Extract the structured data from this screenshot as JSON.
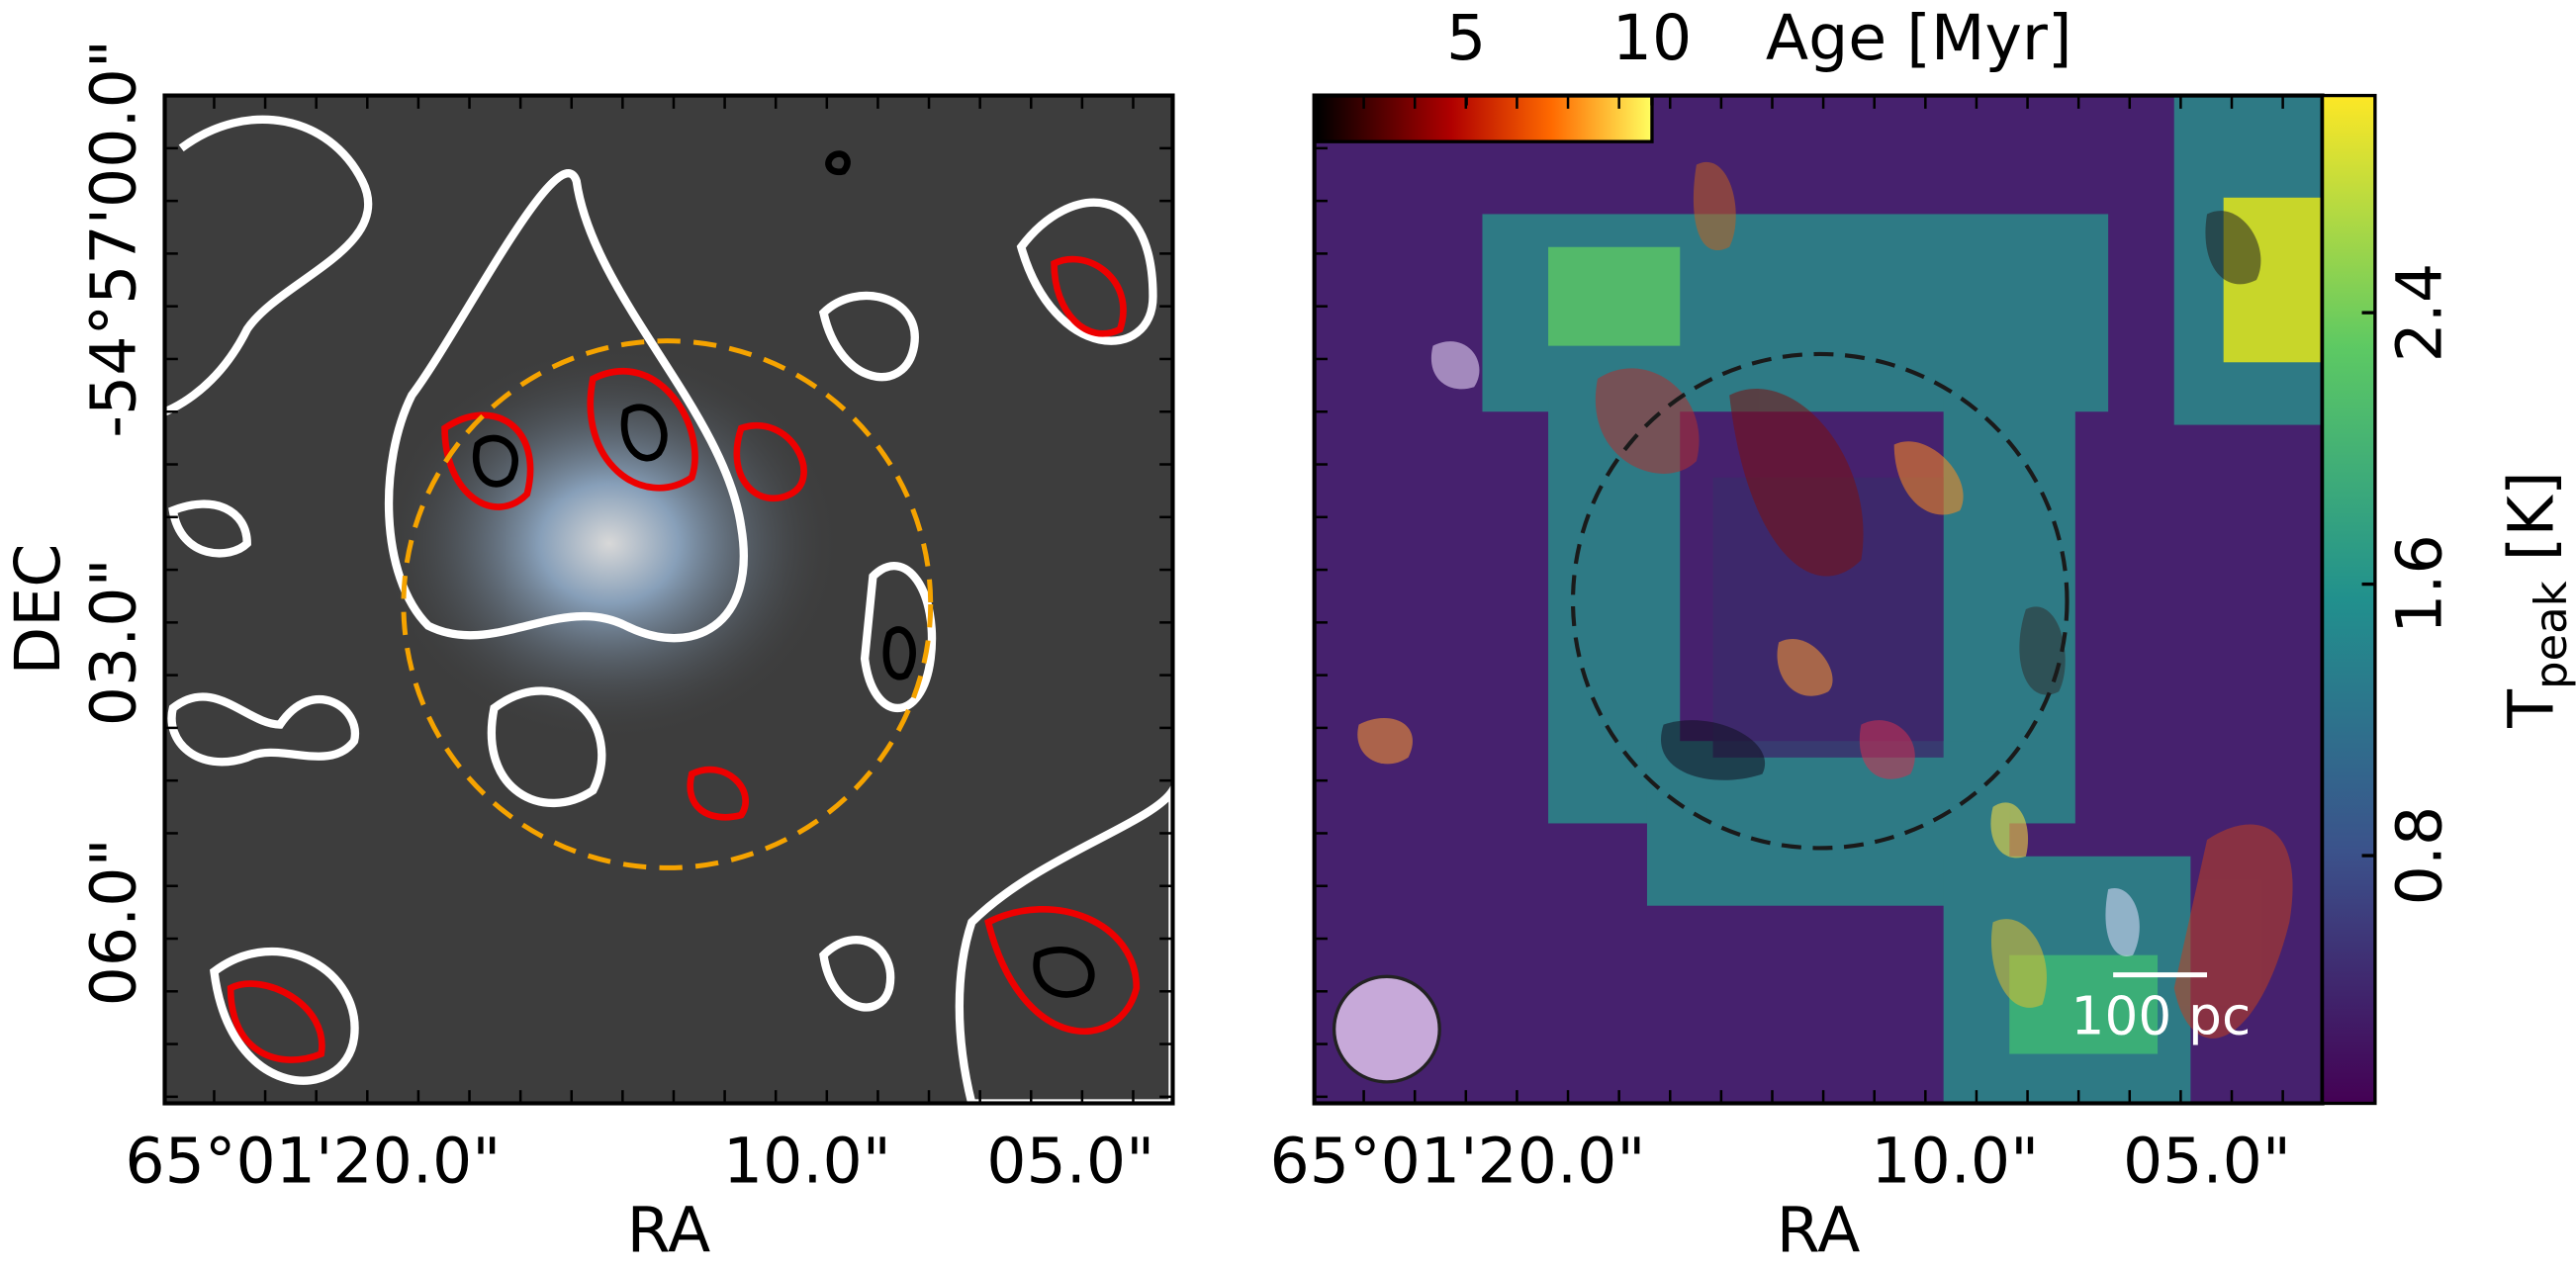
{
  "panels": [
    {
      "xlabel": "RA",
      "ylabel": "DEC",
      "xticks": [
        "65°01'20.0\"",
        "10.0\"",
        "05.0\""
      ],
      "yticks": [
        "-54°57'00.0\"",
        "03.0\"",
        "06.0\""
      ]
    },
    {
      "xlabel": "RA",
      "xticks": [
        "65°01'20.0\"",
        "10.0\"",
        "05.0\""
      ],
      "scalebar": "100 pc",
      "colorbar": {
        "label": {
          "main": "T",
          "sub": "peak",
          "unit": " [K]"
        },
        "lim": [
          0.07,
          3.04
        ],
        "ticks": [
          0.8,
          1.6,
          2.4
        ]
      },
      "agebar": {
        "label": "Age [Myr]",
        "lim": [
          1,
          10
        ],
        "ticks": [
          5,
          10
        ]
      }
    }
  ]
}
